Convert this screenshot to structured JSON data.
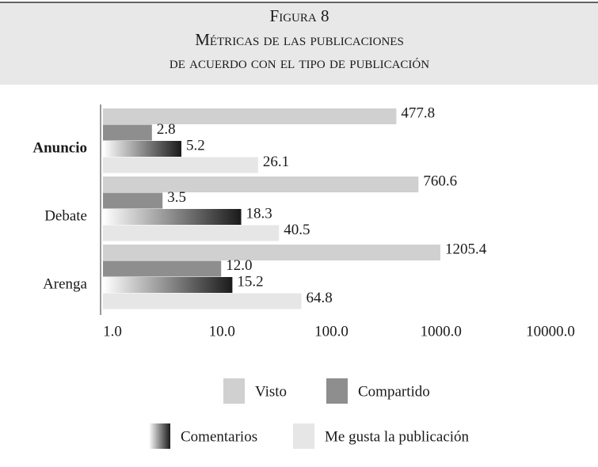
{
  "chart_data": {
    "type": "barh",
    "title": [
      "Figura 8",
      "Métricas de las publicaciones",
      "de acuerdo con el tipo de publicación"
    ],
    "categories": [
      "Anuncio",
      "Debate",
      "Arenga"
    ],
    "series": [
      {
        "name": "Visto",
        "color": "#d0d0d0",
        "values": [
          477.8,
          760.6,
          1205.4
        ]
      },
      {
        "name": "Compartido",
        "color": "#8e8e8f",
        "values": [
          2.8,
          3.5,
          12.0
        ],
        "value_labels": [
          "2.8",
          "3.5",
          "12.0"
        ]
      },
      {
        "name": "Comentarios",
        "color": "#1a1a1a",
        "gradient": true,
        "values": [
          5.2,
          18.3,
          15.2
        ]
      },
      {
        "name": "Me gusta la publicación",
        "color": "#e6e6e6",
        "values": [
          26.1,
          40.5,
          64.8
        ]
      }
    ],
    "log_x": true,
    "xlim": [
      1,
      10000
    ],
    "xticks": [
      {
        "value": 1,
        "label": "1.0"
      },
      {
        "value": 10,
        "label": "10.0"
      },
      {
        "value": 100,
        "label": "100.0"
      },
      {
        "value": 1000,
        "label": "1000.0"
      },
      {
        "value": 10000,
        "label": "10000.0"
      }
    ]
  }
}
